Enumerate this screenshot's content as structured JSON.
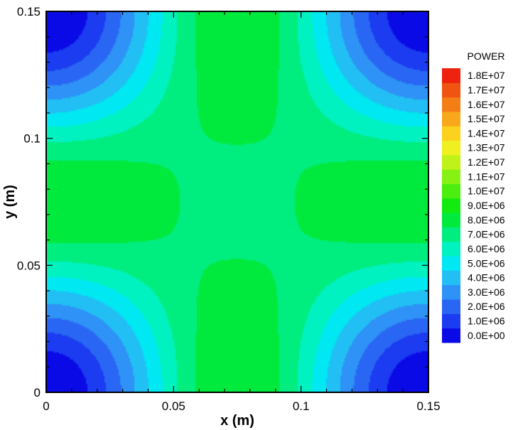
{
  "chart_data": {
    "type": "heatmap",
    "title": "",
    "xlabel": "x (m)",
    "ylabel": "y (m)",
    "xlim": [
      0,
      0.15
    ],
    "ylim": [
      0,
      0.15
    ],
    "xticks": [
      "0",
      "0.05",
      "0.1",
      "0.15"
    ],
    "yticks": [
      "0",
      "0.05",
      "0.1",
      "0.15"
    ],
    "xtick_values": [
      0,
      0.05,
      0.1,
      0.15
    ],
    "ytick_values": [
      0,
      0.05,
      0.1,
      0.15
    ],
    "grid": false,
    "legend": {
      "title": "POWER",
      "placement": "right",
      "levels": [
        "0.0E+00",
        "1.0E+06",
        "2.0E+06",
        "3.0E+06",
        "4.0E+06",
        "5.0E+06",
        "6.0E+06",
        "7.0E+06",
        "8.0E+06",
        "9.0E+06",
        "1.0E+07",
        "1.1E+07",
        "1.2E+07",
        "1.3E+07",
        "1.4E+07",
        "1.5E+07",
        "1.6E+07",
        "1.7E+07",
        "1.8E+07"
      ],
      "colors": [
        "#0a0ae6",
        "#1b3cf0",
        "#2a66f4",
        "#2e92f6",
        "#22bff4",
        "#00e8f2",
        "#00f2c0",
        "#00ee80",
        "#00ea3e",
        "#12ea10",
        "#4cee10",
        "#86f214",
        "#bff218",
        "#f0f020",
        "#fcd21e",
        "#f8a81a",
        "#f47e16",
        "#f05412",
        "#ee220e"
      ]
    },
    "field_description_values": {
      "min": 0,
      "max": 18000000,
      "center_min_at": [
        0.075,
        0.075
      ],
      "peak_locations": [
        [
          0.075,
          0.0
        ],
        [
          0.075,
          0.15
        ],
        [
          0.0,
          0.075
        ],
        [
          0.15,
          0.075
        ]
      ],
      "corner_minima": [
        [
          0,
          0
        ],
        [
          0,
          0.15
        ],
        [
          0.15,
          0
        ],
        [
          0.15,
          0.15
        ]
      ]
    }
  }
}
